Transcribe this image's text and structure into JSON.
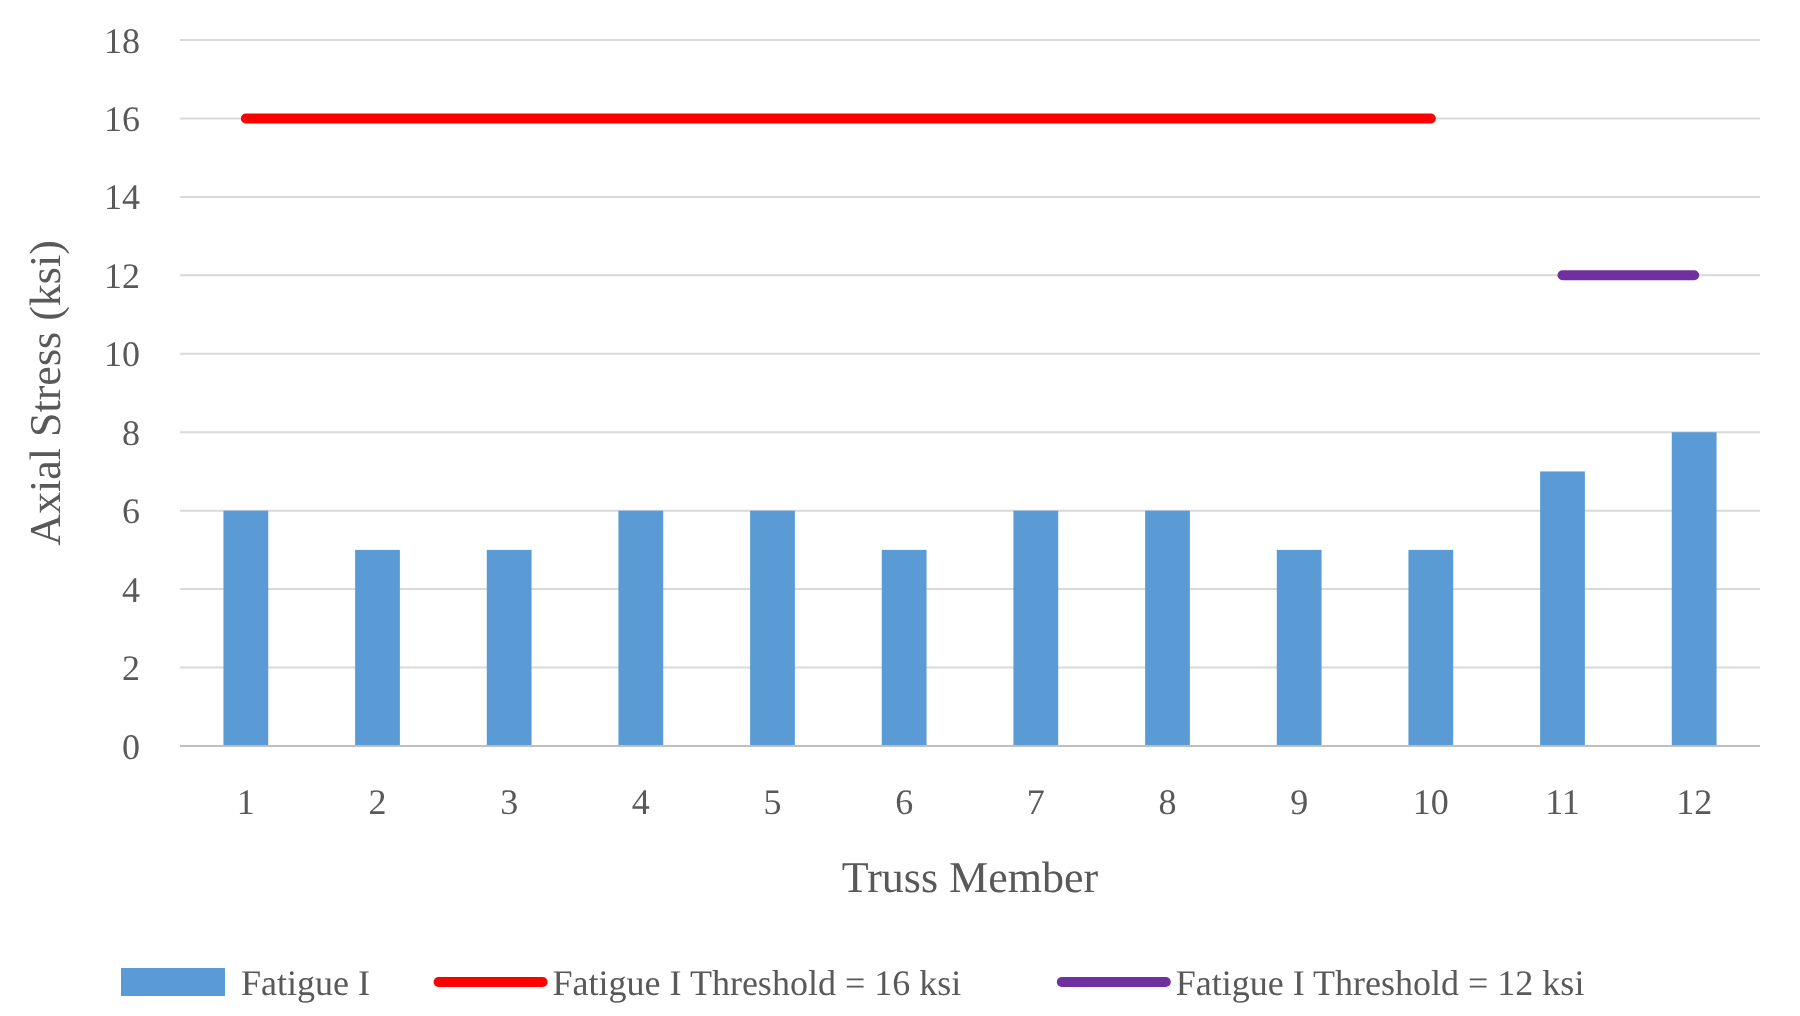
{
  "chart_data": {
    "type": "bar",
    "xlabel": "Truss Member",
    "ylabel": "Axial Stress (ksi)",
    "categories": [
      "1",
      "2",
      "3",
      "4",
      "5",
      "6",
      "7",
      "8",
      "9",
      "10",
      "11",
      "12"
    ],
    "series": [
      {
        "name": "Fatigue I",
        "color": "#5b9bd5",
        "values": [
          6,
          5,
          5,
          6,
          6,
          5,
          6,
          6,
          5,
          5,
          7,
          8
        ]
      },
      {
        "name": "Fatigue I Threshold = 16 ksi",
        "type": "line",
        "color": "#ff0000",
        "values": [
          16,
          16,
          16,
          16,
          16,
          16,
          16,
          16,
          16,
          16,
          null,
          null
        ]
      },
      {
        "name": "Fatigue I Threshold = 12 ksi",
        "type": "line",
        "color": "#7030a0",
        "values": [
          null,
          null,
          null,
          null,
          null,
          null,
          null,
          null,
          null,
          null,
          12,
          12
        ]
      }
    ],
    "ylim": [
      0,
      18
    ],
    "yticks": [
      0,
      2,
      4,
      6,
      8,
      10,
      12,
      14,
      16,
      18
    ],
    "grid": "y",
    "legend": "bottom"
  }
}
